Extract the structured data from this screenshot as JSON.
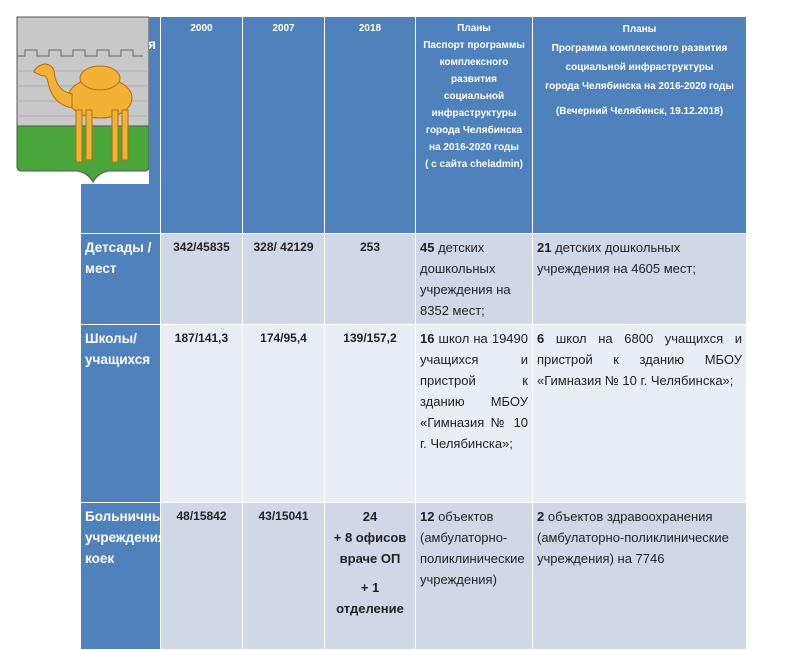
{
  "header": {
    "col0": "я",
    "col1": "2000",
    "col2": "2007",
    "col3": "2018",
    "col4": [
      "Планы",
      "Паспорт программы комплексного развития социальной инфраструктуры города Челябинска на 2016-2020 годы",
      "( с сайта cheladmin)"
    ],
    "col5": [
      "Планы",
      "Программа комплексного развития социальной инфраструктуры",
      "города Челябинска на 2016-2020 годы",
      "(Вечерний Челябинск, 19.12.2018)"
    ]
  },
  "rows": [
    {
      "name": "Детсады /мест",
      "v2000": "342/45835",
      "v2007": "328/ 42129",
      "v2018": "253",
      "plan1_num": "45",
      "plan1_text": " детских дошкольных учреждения на 8352 мест;",
      "plan2_num": "21",
      "plan2_text": " детских дошкольных учреждения на 4605 мест;"
    },
    {
      "name": "Школы/ учащихся",
      "v2000": "187/141,3",
      "v2007": "174/95,4",
      "v2018": "139/157,2",
      "plan1_num": "16",
      "plan1_text": " школ на 19490 учащихся и пристрой к зданию МБОУ «Гимназия № 10 г. Челябинска»;",
      "plan2_num": "6",
      "plan2_text": " школ на 6800 учащихся и пристрой к зданию МБОУ «Гимназия № 10 г. Челябинска»;"
    },
    {
      "name": "Больничные учреждения/ коек",
      "v2000": "48/15842",
      "v2007": "43/15041",
      "v2018": [
        "24",
        "+ 8 офисов враче ОП",
        "+ 1",
        "отделение"
      ],
      "plan1_num": "12",
      "plan1_text": " объектов (амбулаторно-поликлинические учреждения)",
      "plan2_num": "2",
      "plan2_text": " объектов здравоохранения (амбулаторно-поликлинические учреждения) на  7746"
    }
  ]
}
